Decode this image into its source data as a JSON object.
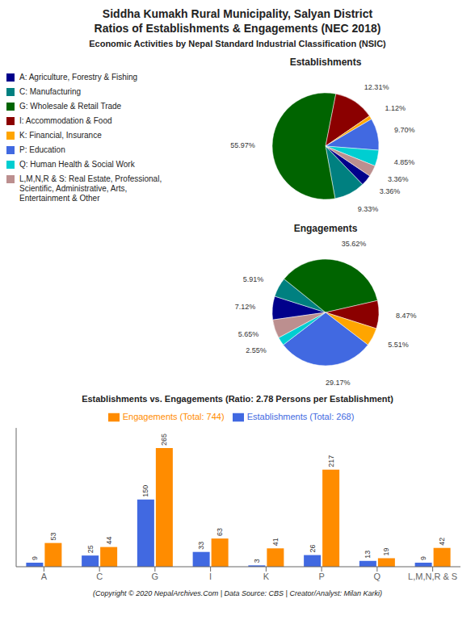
{
  "title": "Siddha Kumakh Rural Municipality, Salyan District\nRatios of Establishments & Engagements (NEC 2018)",
  "subtitle": "Economic Activities by Nepal Standard Industrial Classification (NSIC)",
  "annotations": [
    "(Copyright © 2020 NepalArchives.Com | Data Source: CBS | Creator/Analyst: Milan Karki)"
  ],
  "chart_data": [
    {
      "type": "pie",
      "title": "Establishments",
      "categories": [
        "A: Agriculture, Forestry & Fishing",
        "C: Manufacturing",
        "G: Wholesale & Retail Trade",
        "I: Accommodation & Food",
        "K: Financial, Insurance",
        "P: Education",
        "Q: Human Health & Social Work",
        "L,M,N,R & S: Real Estate, Professional,\nScientific, Administrative, Arts,\nEntertainment & Other"
      ],
      "values": [
        3.36,
        9.33,
        55.97,
        12.31,
        1.12,
        9.7,
        4.85,
        3.36
      ],
      "value_labels": [
        "3.36%",
        "9.33%",
        "55.97%",
        "12.31%",
        "1.12%",
        "9.70%",
        "4.85%",
        "3.36%"
      ],
      "colors": [
        "#00008B",
        "#008080",
        "#006400",
        "#8B0000",
        "#FFA500",
        "#4169E1",
        "#00CED1",
        "#BC8F8F"
      ],
      "data_labels": true,
      "legend": "left"
    },
    {
      "type": "pie",
      "title": "Engagements",
      "values": [
        7.12,
        5.91,
        35.62,
        8.47,
        5.51,
        29.17,
        2.55,
        5.65
      ],
      "value_labels": [
        "7.12%",
        "5.91%",
        "35.62%",
        "8.47%",
        "5.51%",
        "29.17%",
        "2.55%",
        "5.65%"
      ],
      "colors": [
        "#00008B",
        "#008080",
        "#006400",
        "#8B0000",
        "#FFA500",
        "#4169E1",
        "#00CED1",
        "#BC8F8F"
      ],
      "data_labels": true
    },
    {
      "type": "bar",
      "title": "Establishments vs. Engagements (Ratio: 2.78 Persons per Establishment)",
      "categories": [
        "A",
        "C",
        "G",
        "I",
        "K",
        "P",
        "Q",
        "L,M,N,R & S"
      ],
      "series": [
        {
          "name": "Establishments (Total: 268)",
          "color": "#4169E1",
          "values": [
            9,
            25,
            150,
            33,
            3,
            26,
            13,
            9
          ]
        },
        {
          "name": "Engagements (Total: 744)",
          "color": "#FF8C00",
          "values": [
            53,
            44,
            265,
            63,
            41,
            217,
            19,
            42
          ]
        }
      ],
      "ylim": [
        0,
        310
      ],
      "yticks": [],
      "tick_labels": "x",
      "data_labels": true,
      "legend": "top",
      "grid": false
    }
  ]
}
